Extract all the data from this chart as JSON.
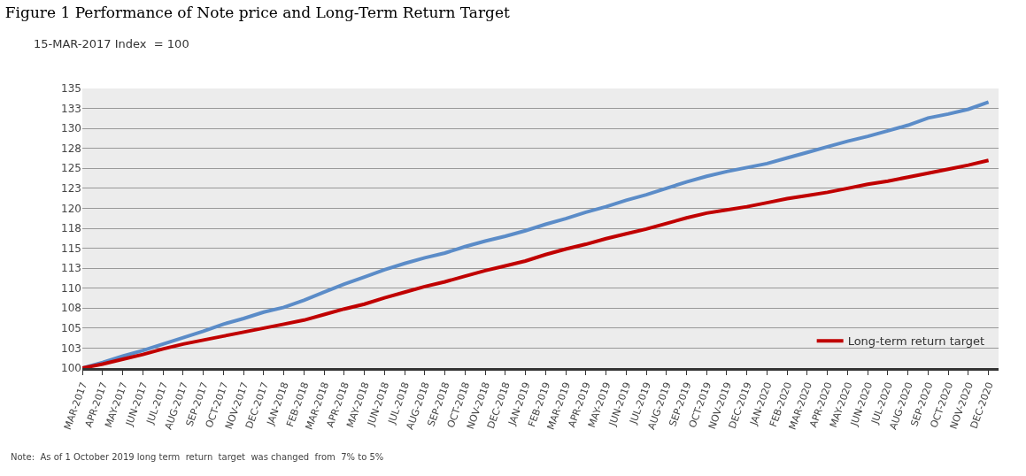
{
  "chart_data": {
    "type": "line",
    "title": "Figure 1 Performance of Note price and Long-Term Return Target",
    "ylabel": "15-MAR-2017 Index  = 100",
    "categories": [
      "MAR-2017",
      "APR-2017",
      "MAY-2017",
      "JUN-2017",
      "JUL-2017",
      "AUG-2017",
      "SEP-2017",
      "OCT-2017",
      "NOV-2017",
      "DEC-2017",
      "JAN-2018",
      "FEB-2018",
      "MAR-2018",
      "APR-2018",
      "MAY-2018",
      "JUN-2018",
      "JUL-2018",
      "AUG-2018",
      "SEP-2018",
      "OCT-2018",
      "NOV-2018",
      "DEC-2018",
      "JAN-2019",
      "FEB-2019",
      "MAR-2019",
      "APR-2019",
      "MAY-2019",
      "JUN-2019",
      "JUL-2019",
      "AUG-2019",
      "SEP-2019",
      "OCT-2019",
      "NOV-2019",
      "DEC-2019",
      "JAN-2020",
      "FEB-2020",
      "MAR-2020",
      "APR-2020",
      "MAY-2020",
      "JUN-2020",
      "JUL-2020",
      "AUG-2020",
      "SEP-2020",
      "OCT-2020",
      "NOV-2020",
      "DEC-2020"
    ],
    "series": [
      {
        "color": "#5b8cc8",
        "values": [
          100.0,
          100.7,
          101.5,
          102.2,
          103.0,
          103.8,
          104.6,
          105.5,
          106.2,
          107.0,
          107.6,
          108.5,
          109.5,
          110.5,
          111.4,
          112.3,
          113.1,
          113.8,
          114.4,
          115.2,
          115.9,
          116.5,
          117.2,
          118.0,
          118.7,
          119.5,
          120.2,
          121.0,
          121.7,
          122.5,
          123.3,
          124.0,
          124.6,
          125.1,
          125.6,
          126.3,
          127.0,
          127.7,
          128.4,
          129.0,
          129.7,
          130.4,
          131.3,
          131.8,
          132.4,
          133.3
        ]
      },
      {
        "name": "Long-term return target",
        "color": "#c00000",
        "values": [
          100.0,
          100.5,
          101.1,
          101.7,
          102.4,
          103.0,
          103.5,
          104.0,
          104.5,
          105.0,
          105.5,
          106.0,
          106.7,
          107.4,
          108.0,
          108.8,
          109.5,
          110.2,
          110.8,
          111.5,
          112.2,
          112.8,
          113.4,
          114.2,
          114.9,
          115.5,
          116.2,
          116.8,
          117.4,
          118.1,
          118.8,
          119.4,
          119.8,
          120.2,
          120.7,
          121.2,
          121.6,
          122.0,
          122.5,
          123.0,
          123.4,
          123.9,
          124.4,
          124.9,
          125.4,
          126.0
        ]
      }
    ],
    "ylim": [
      100,
      135
    ],
    "yticks": [
      100,
      {
        "value": 102.5,
        "label": "103"
      },
      105,
      {
        "value": 107.5,
        "label": "108"
      },
      110,
      {
        "value": 112.5,
        "label": "113"
      },
      115,
      {
        "value": 117.5,
        "label": "118"
      },
      120,
      {
        "value": 122.5,
        "label": "123"
      },
      125,
      {
        "value": 127.5,
        "label": "128"
      },
      130,
      {
        "value": 132.5,
        "label": "133"
      },
      135
    ],
    "grid": "y",
    "legend": "bottom right",
    "marker": "none",
    "line_style": "solid",
    "annotations": [
      "Note:  As of 1 October 2019 long term  return  target  was changed  from  7% to 5%"
    ]
  }
}
